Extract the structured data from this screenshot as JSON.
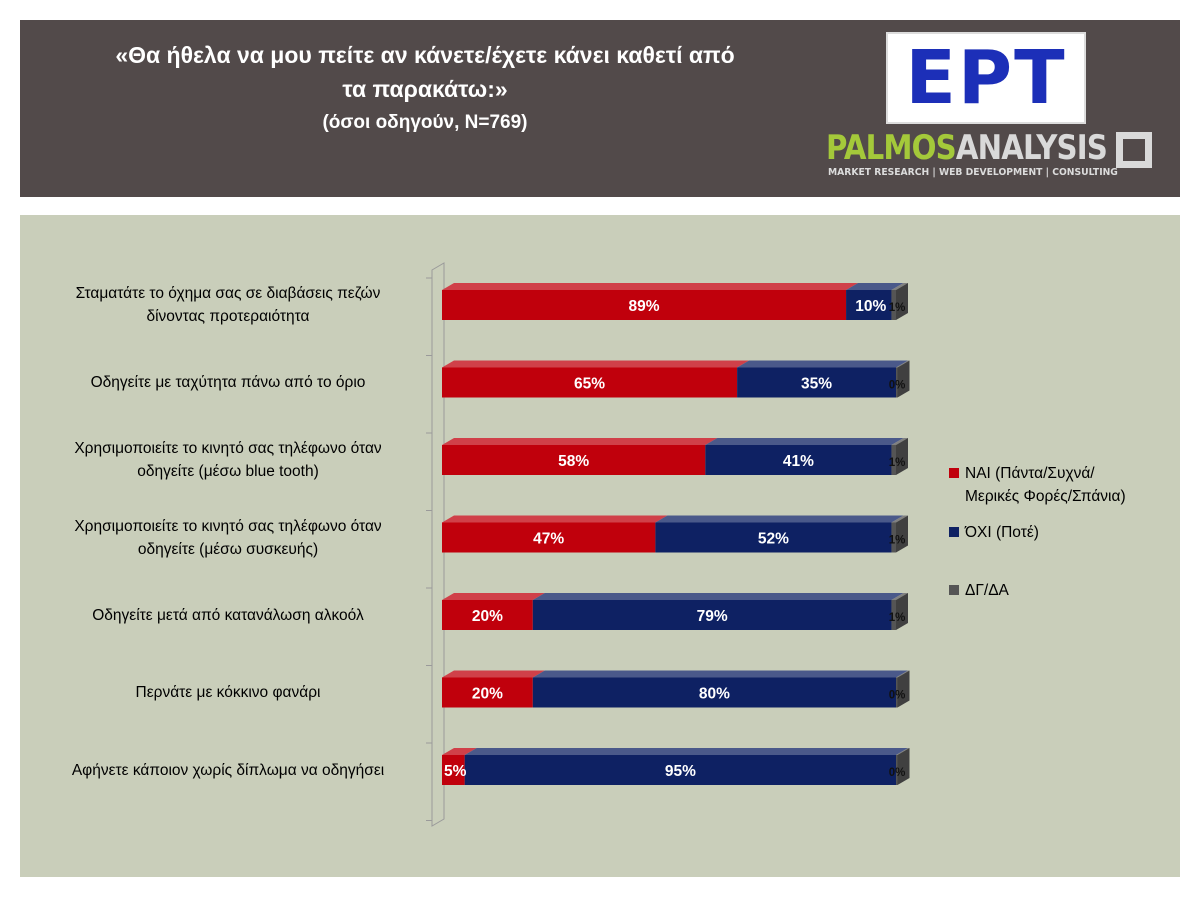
{
  "header": {
    "title_line1": "«Θα ήθελα να μου πείτε αν κάνετε/έχετε κάνει καθετί από",
    "title_line2": "τα παρακάτω:»",
    "subtitle": "(όσοι οδηγούν, N=769)"
  },
  "logos": {
    "ert": "ΕΡΤ",
    "palmos_part1": "PALMOS",
    "palmos_part2": "ANALYSIS",
    "palmos_tagline": "MARKET RESEARCH | WEB DEVELOPMENT | CONSULTING"
  },
  "colors": {
    "header_bg": "#524a4a",
    "chart_bg": "#c9ceba",
    "yes": "#c0000c",
    "no": "#0e2163",
    "dk": "#555555"
  },
  "chart_data": {
    "type": "bar",
    "orientation": "horizontal-stacked-100",
    "categories": [
      "Σταματάτε το όχημα σας σε διαβάσεις πεζών δίνοντας προτεραιότητα",
      "Οδηγείτε με ταχύτητα πάνω από το όριο",
      "Χρησιμοποιείτε το κινητό σας τηλέφωνο όταν οδηγείτε (μέσω blue tooth)",
      "Χρησιμοποιείτε το κινητό σας τηλέφωνο όταν οδηγείτε (μέσω συσκευής)",
      "Οδηγείτε μετά από κατανάλωση αλκοόλ",
      "Περνάτε με κόκκινο φανάρι",
      "Αφήνετε κάποιον χωρίς δίπλωμα να οδηγήσει"
    ],
    "category_lines": [
      [
        "Σταματάτε το όχημα σας σε διαβάσεις πεζών",
        "δίνοντας προτεραιότητα"
      ],
      [
        "Οδηγείτε με ταχύτητα πάνω από το όριο"
      ],
      [
        "Χρησιμοποιείτε το κινητό σας τηλέφωνο όταν",
        "οδηγείτε (μέσω blue tooth)"
      ],
      [
        "Χρησιμοποιείτε το κινητό σας τηλέφωνο όταν",
        "οδηγείτε (μέσω συσκευής)"
      ],
      [
        "Οδηγείτε μετά από κατανάλωση αλκοόλ"
      ],
      [
        "Περνάτε με κόκκινο φανάρι"
      ],
      [
        "Αφήνετε κάποιον χωρίς δίπλωμα να οδηγήσει"
      ]
    ],
    "series": [
      {
        "name": "ΝΑΙ (Πάντα/Συχνά/Μερικές Φορές/Σπάνια)",
        "name_lines": [
          "ΝΑΙ (Πάντα/Συχνά/",
          "Μερικές Φορές/Σπάνια)"
        ],
        "color": "#c0000c",
        "values": [
          89,
          65,
          58,
          47,
          20,
          20,
          5
        ],
        "labels": [
          "89%",
          "65%",
          "58%",
          "47%",
          "20%",
          "20%",
          "5%"
        ]
      },
      {
        "name": "ΌΧΙ (Ποτέ)",
        "name_lines": [
          "ΌΧΙ (Ποτέ)"
        ],
        "color": "#0e2163",
        "values": [
          10,
          35,
          41,
          52,
          79,
          80,
          95
        ],
        "labels": [
          "10%",
          "35%",
          "41%",
          "52%",
          "79%",
          "80%",
          "95%"
        ]
      },
      {
        "name": "ΔΓ/ΔΑ",
        "name_lines": [
          "ΔΓ/ΔΑ"
        ],
        "color": "#555555",
        "values": [
          1,
          0,
          1,
          1,
          1,
          0,
          0
        ],
        "labels": [
          "1%",
          "0%",
          "1%",
          "1%",
          "1%",
          "0%",
          "0%"
        ]
      }
    ],
    "xlim": [
      0,
      100
    ],
    "legend": "right",
    "grid": false
  }
}
